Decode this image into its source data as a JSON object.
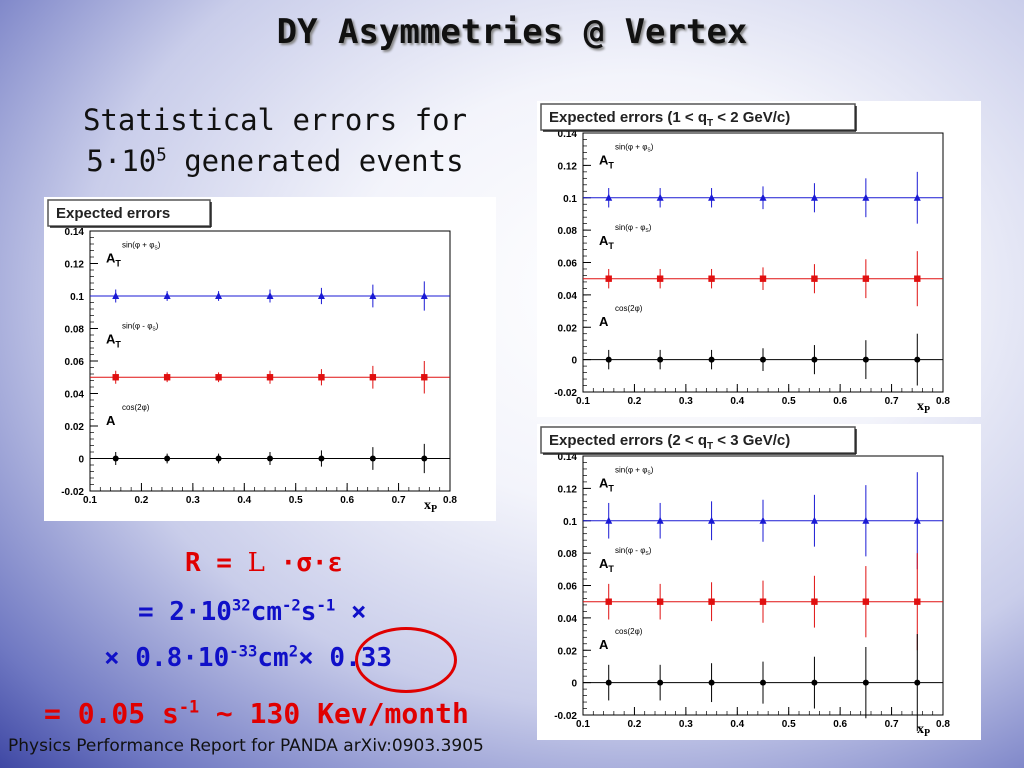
{
  "slide": {
    "title": "DY Asymmetries @ Vertex",
    "subtitle_line1": "Statistical errors for",
    "subtitle_line2_base": "5·10",
    "subtitle_line2_exp": "5",
    "subtitle_line2_rest": " generated events"
  },
  "formula": {
    "r_label": "R = ",
    "lum_symbol": "L",
    "lum_rest": " ·σ·ε",
    "line2_a": "= 2·10",
    "line2_a_exp": "32",
    "line2_b": "cm",
    "line2_b_exp": "-2",
    "line2_c": "s",
    "line2_c_exp": "-1",
    "line2_d": " ×",
    "line3_a": "× 0.8·10",
    "line3_a_exp": "-33",
    "line3_b": "cm",
    "line3_b_exp": "2",
    "line3_c": "× ",
    "line3_d": "0.33",
    "line4_a": "= 0.05 s",
    "line4_a_exp": "-1",
    "line4_b": " ~ 130 Kev/month"
  },
  "footer": {
    "text": "Physics Performance Report for PANDA arXiv:0903.3905"
  },
  "chart_data": [
    {
      "type": "scatter",
      "title": "Expected errors",
      "xlabel": "xP",
      "xlim": [
        0.1,
        0.8
      ],
      "ylim": [
        -0.02,
        0.14
      ],
      "xticks": [
        "0.1",
        "0.2",
        "0.3",
        "0.4",
        "0.5",
        "0.6",
        "0.7",
        "0.8"
      ],
      "yticks": [
        "-0.02",
        "0",
        "0.02",
        "0.04",
        "0.06",
        "0.08",
        "0.1",
        "0.12",
        "0.14"
      ],
      "grid": false,
      "labels": [
        {
          "text": "A",
          "sub": "T",
          "sup": "sin(φ + φ",
          "sup_sub": "S",
          "sup_end": ")",
          "y": 0.125
        },
        {
          "text": "A",
          "sub": "T",
          "sup": "sin(φ - φ",
          "sup_sub": "S",
          "sup_end": ")",
          "y": 0.075
        },
        {
          "text": "A",
          "sub": "",
          "sup": "cos(2φ)",
          "sup_sub": "",
          "sup_end": "",
          "y": 0.025
        }
      ],
      "series": [
        {
          "name": "A_T^sin(φ+φS)",
          "color": "#1a1ad4",
          "marker": "triangle",
          "line": 0.1,
          "x": [
            0.15,
            0.25,
            0.35,
            0.45,
            0.55,
            0.65,
            0.75
          ],
          "y": [
            0.1,
            0.1,
            0.1,
            0.1,
            0.1,
            0.1,
            0.1
          ],
          "err": [
            0.004,
            0.003,
            0.003,
            0.004,
            0.005,
            0.007,
            0.009
          ]
        },
        {
          "name": "A_T^sin(φ-φS)",
          "color": "#e01010",
          "marker": "square",
          "line": 0.05,
          "x": [
            0.15,
            0.25,
            0.35,
            0.45,
            0.55,
            0.65,
            0.75
          ],
          "y": [
            0.05,
            0.05,
            0.05,
            0.05,
            0.05,
            0.05,
            0.05
          ],
          "err": [
            0.004,
            0.003,
            0.003,
            0.004,
            0.005,
            0.007,
            0.01
          ]
        },
        {
          "name": "A^cos(2φ)",
          "color": "#000000",
          "marker": "circle",
          "line": 0,
          "x": [
            0.15,
            0.25,
            0.35,
            0.45,
            0.55,
            0.65,
            0.75
          ],
          "y": [
            0,
            0,
            0,
            0,
            0,
            0,
            0
          ],
          "err": [
            0.004,
            0.003,
            0.003,
            0.004,
            0.005,
            0.007,
            0.009
          ]
        }
      ]
    },
    {
      "type": "scatter",
      "title": "Expected errors (1 < q",
      "title_sub": "T",
      "title_end": " < 2 GeV/c)",
      "xlabel": "xP",
      "xlim": [
        0.1,
        0.8
      ],
      "ylim": [
        -0.02,
        0.14
      ],
      "xticks": [
        "0.1",
        "0.2",
        "0.3",
        "0.4",
        "0.5",
        "0.6",
        "0.7",
        "0.8"
      ],
      "yticks": [
        "-0.02",
        "0",
        "0.02",
        "0.04",
        "0.06",
        "0.08",
        "0.1",
        "0.12",
        "0.14"
      ],
      "grid": false,
      "labels": [
        {
          "text": "A",
          "sub": "T",
          "sup": "sin(φ + φ",
          "sup_sub": "S",
          "sup_end": ")",
          "y": 0.125
        },
        {
          "text": "A",
          "sub": "T",
          "sup": "sin(φ - φ",
          "sup_sub": "S",
          "sup_end": ")",
          "y": 0.075
        },
        {
          "text": "A",
          "sub": "",
          "sup": "cos(2φ)",
          "sup_sub": "",
          "sup_end": "",
          "y": 0.025
        }
      ],
      "series": [
        {
          "name": "A_T^sin(φ+φS)",
          "color": "#1a1ad4",
          "marker": "triangle",
          "line": 0.1,
          "x": [
            0.15,
            0.25,
            0.35,
            0.45,
            0.55,
            0.65,
            0.75
          ],
          "y": [
            0.1,
            0.1,
            0.1,
            0.1,
            0.1,
            0.1,
            0.1
          ],
          "err": [
            0.006,
            0.006,
            0.006,
            0.007,
            0.009,
            0.012,
            0.016
          ]
        },
        {
          "name": "A_T^sin(φ-φS)",
          "color": "#e01010",
          "marker": "square",
          "line": 0.05,
          "x": [
            0.15,
            0.25,
            0.35,
            0.45,
            0.55,
            0.65,
            0.75
          ],
          "y": [
            0.05,
            0.05,
            0.05,
            0.05,
            0.05,
            0.05,
            0.05
          ],
          "err": [
            0.006,
            0.006,
            0.006,
            0.007,
            0.009,
            0.012,
            0.017
          ]
        },
        {
          "name": "A^cos(2φ)",
          "color": "#000000",
          "marker": "circle",
          "line": 0,
          "x": [
            0.15,
            0.25,
            0.35,
            0.45,
            0.55,
            0.65,
            0.75
          ],
          "y": [
            0,
            0,
            0,
            0,
            0,
            0,
            0
          ],
          "err": [
            0.006,
            0.006,
            0.006,
            0.007,
            0.009,
            0.012,
            0.016
          ]
        }
      ]
    },
    {
      "type": "scatter",
      "title": "Expected errors (2 < q",
      "title_sub": "T",
      "title_end": " < 3 GeV/c)",
      "xlabel": "xP",
      "xlim": [
        0.1,
        0.8
      ],
      "ylim": [
        -0.02,
        0.14
      ],
      "xticks": [
        "0.1",
        "0.2",
        "0.3",
        "0.4",
        "0.5",
        "0.6",
        "0.7",
        "0.8"
      ],
      "yticks": [
        "-0.02",
        "0",
        "0.02",
        "0.04",
        "0.06",
        "0.08",
        "0.1",
        "0.12",
        "0.14"
      ],
      "grid": false,
      "labels": [
        {
          "text": "A",
          "sub": "T",
          "sup": "sin(φ + φ",
          "sup_sub": "S",
          "sup_end": ")",
          "y": 0.125
        },
        {
          "text": "A",
          "sub": "T",
          "sup": "sin(φ - φ",
          "sup_sub": "S",
          "sup_end": ")",
          "y": 0.075
        },
        {
          "text": "A",
          "sub": "",
          "sup": "cos(2φ)",
          "sup_sub": "",
          "sup_end": "",
          "y": 0.025
        }
      ],
      "series": [
        {
          "name": "A_T^sin(φ+φS)",
          "color": "#1a1ad4",
          "marker": "triangle",
          "line": 0.1,
          "x": [
            0.15,
            0.25,
            0.35,
            0.45,
            0.55,
            0.65,
            0.75
          ],
          "y": [
            0.1,
            0.1,
            0.1,
            0.1,
            0.1,
            0.1,
            0.1
          ],
          "err": [
            0.011,
            0.011,
            0.012,
            0.013,
            0.016,
            0.022,
            0.03
          ]
        },
        {
          "name": "A_T^sin(φ-φS)",
          "color": "#e01010",
          "marker": "square",
          "line": 0.05,
          "x": [
            0.15,
            0.25,
            0.35,
            0.45,
            0.55,
            0.65,
            0.75
          ],
          "y": [
            0.05,
            0.05,
            0.05,
            0.05,
            0.05,
            0.05,
            0.05
          ],
          "err": [
            0.011,
            0.011,
            0.012,
            0.013,
            0.016,
            0.022,
            0.03
          ]
        },
        {
          "name": "A^cos(2φ)",
          "color": "#000000",
          "marker": "circle",
          "line": 0,
          "x": [
            0.15,
            0.25,
            0.35,
            0.45,
            0.55,
            0.65,
            0.75
          ],
          "y": [
            0,
            0,
            0,
            0,
            0,
            0,
            0
          ],
          "err": [
            0.011,
            0.011,
            0.012,
            0.013,
            0.016,
            0.022,
            0.03
          ]
        }
      ]
    }
  ]
}
